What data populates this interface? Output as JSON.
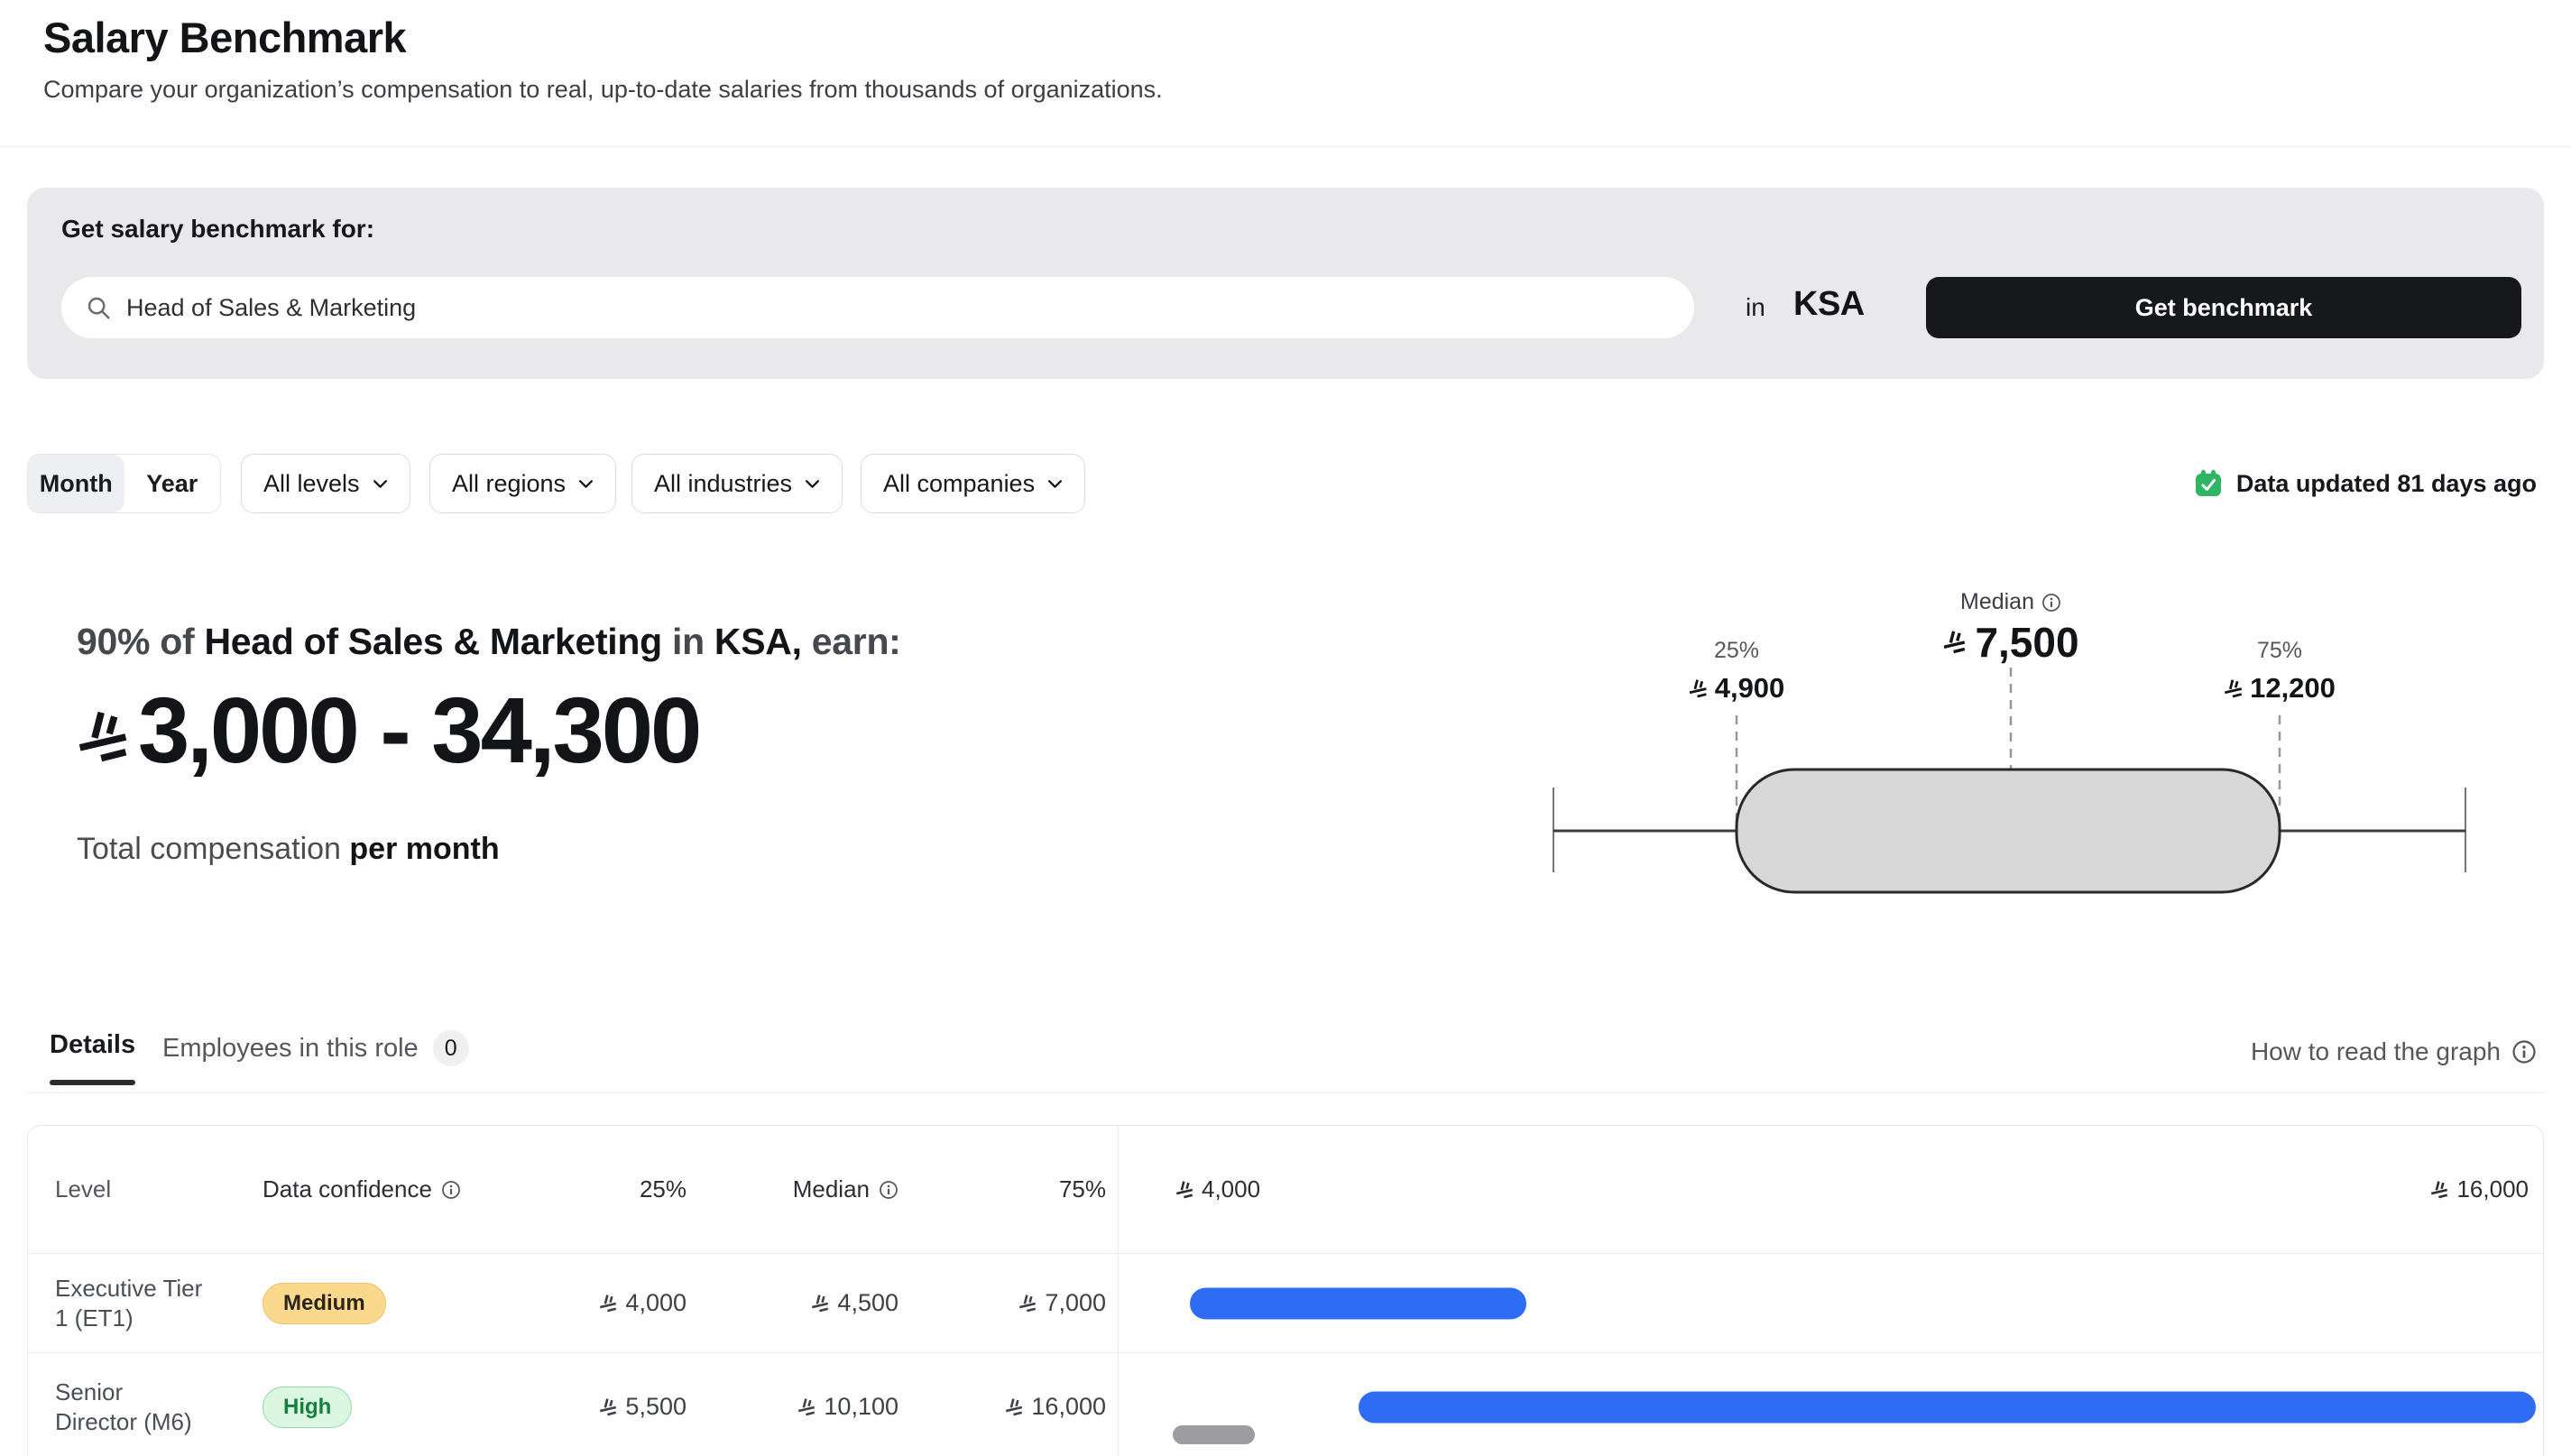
{
  "header": {
    "title": "Salary Benchmark",
    "subtitle": "Compare your organization’s compensation to real, up-to-date salaries from thousands of organizations."
  },
  "benchmark_form": {
    "label": "Get salary benchmark for:",
    "search_value": "Head of Sales & Marketing",
    "in_label": "in",
    "country": "KSA",
    "submit_label": "Get benchmark"
  },
  "filters": {
    "period_month": "Month",
    "period_year": "Year",
    "active_period": "Month",
    "levels": "All levels",
    "regions": "All regions",
    "industries": "All industries",
    "companies": "All companies",
    "data_updated": "Data updated 81 days ago"
  },
  "summary": {
    "headline_prefix": "90% of",
    "role": "Head of Sales & Marketing",
    "in_word": "in",
    "location": "KSA,",
    "earn_word": "earn:",
    "range": "3,000 - 34,300",
    "caption_regular": "Total compensation",
    "caption_bold": "per month"
  },
  "chart_data": {
    "type": "boxplot",
    "title": "Total compensation per month distribution (SAR)",
    "currency": "SAR",
    "range_min": 3000,
    "range_max": 34300,
    "p25": {
      "label": "25%",
      "value": "4,900",
      "numeric": 4900
    },
    "median": {
      "label": "Median",
      "value": "7,500",
      "numeric": 7500
    },
    "p75": {
      "label": "75%",
      "value": "12,200",
      "numeric": 12200
    }
  },
  "tabs": {
    "details": "Details",
    "employees": "Employees in this role",
    "employees_count": "0",
    "how_to": "How to read the graph"
  },
  "details_table": {
    "columns": {
      "level": "Level",
      "confidence": "Data confidence",
      "p25": "25%",
      "median": "Median",
      "p75": "75%"
    },
    "axis": {
      "min": 4000,
      "max": 16000,
      "min_label": "4,000",
      "max_label": "16,000"
    },
    "rows": [
      {
        "level_line1": "Executive Tier",
        "level_line2": "1 (ET1)",
        "confidence": "Medium",
        "confidence_color": "amber",
        "p25": "4,000",
        "median": "4,500",
        "p75": "7,000",
        "p25_num": 4000,
        "p75_num": 7000
      },
      {
        "level_line1": "Senior",
        "level_line2": "Director (M6)",
        "confidence": "High",
        "confidence_color": "green",
        "p25": "5,500",
        "median": "10,100",
        "p75": "16,000",
        "p25_num": 5500,
        "p75_num": 16000
      }
    ]
  },
  "colors": {
    "accent_blue": "#2E6CF3",
    "badge_amber_bg": "#FBD98C",
    "badge_green_bg": "#DCF7E1",
    "calendar_green": "#2FB565",
    "button_black": "#17181C",
    "boxplot_fill": "#D7D7D7"
  }
}
